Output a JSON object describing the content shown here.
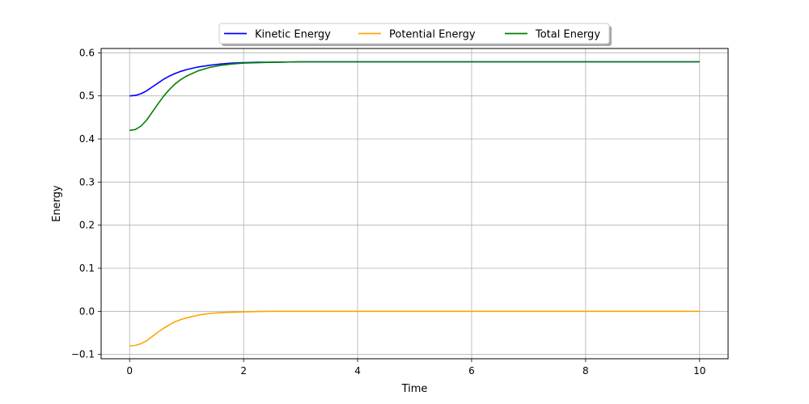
{
  "chart_data": {
    "type": "line",
    "title": "",
    "xlabel": "Time",
    "ylabel": "Energy",
    "xlim": [
      -0.5,
      10.5
    ],
    "ylim": [
      -0.11,
      0.61
    ],
    "xticks": [
      0,
      2,
      4,
      6,
      8,
      10
    ],
    "yticks": [
      -0.1,
      0.0,
      0.1,
      0.2,
      0.3,
      0.4,
      0.5,
      0.6
    ],
    "xtick_labels": [
      "0",
      "2",
      "4",
      "6",
      "8",
      "10"
    ],
    "ytick_labels": [
      "−0.1",
      "0.0",
      "0.1",
      "0.2",
      "0.3",
      "0.4",
      "0.5",
      "0.6"
    ],
    "grid": true,
    "legend_position": "top-center",
    "x": [
      0,
      0.1,
      0.2,
      0.3,
      0.4,
      0.5,
      0.6,
      0.7,
      0.8,
      0.9,
      1.0,
      1.2,
      1.4,
      1.6,
      1.8,
      2.0,
      2.25,
      2.5,
      3.0,
      3.5,
      4.0,
      5.0,
      6.0,
      7.0,
      8.0,
      9.0,
      10.0
    ],
    "series": [
      {
        "name": "Kinetic Energy",
        "color": "#0000ff",
        "values": [
          0.5,
          0.501,
          0.505,
          0.512,
          0.521,
          0.53,
          0.539,
          0.546,
          0.552,
          0.557,
          0.561,
          0.567,
          0.571,
          0.574,
          0.576,
          0.577,
          0.578,
          0.578,
          0.579,
          0.579,
          0.579,
          0.579,
          0.579,
          0.579,
          0.579,
          0.579,
          0.579
        ]
      },
      {
        "name": "Potential Energy",
        "color": "#ffa500",
        "values": [
          -0.08,
          -0.079,
          -0.075,
          -0.068,
          -0.058,
          -0.048,
          -0.039,
          -0.031,
          -0.024,
          -0.019,
          -0.015,
          -0.009,
          -0.005,
          -0.003,
          -0.002,
          -0.001,
          -0.0005,
          0.0,
          0.0,
          0.0,
          0.0,
          0.0,
          0.0,
          0.0,
          0.0,
          0.0,
          0.0
        ]
      },
      {
        "name": "Total Energy",
        "color": "#008000",
        "values": [
          0.42,
          0.422,
          0.43,
          0.444,
          0.463,
          0.482,
          0.5,
          0.515,
          0.528,
          0.538,
          0.546,
          0.558,
          0.566,
          0.571,
          0.574,
          0.576,
          0.577,
          0.578,
          0.579,
          0.579,
          0.579,
          0.579,
          0.579,
          0.579,
          0.579,
          0.579,
          0.579
        ]
      }
    ]
  }
}
